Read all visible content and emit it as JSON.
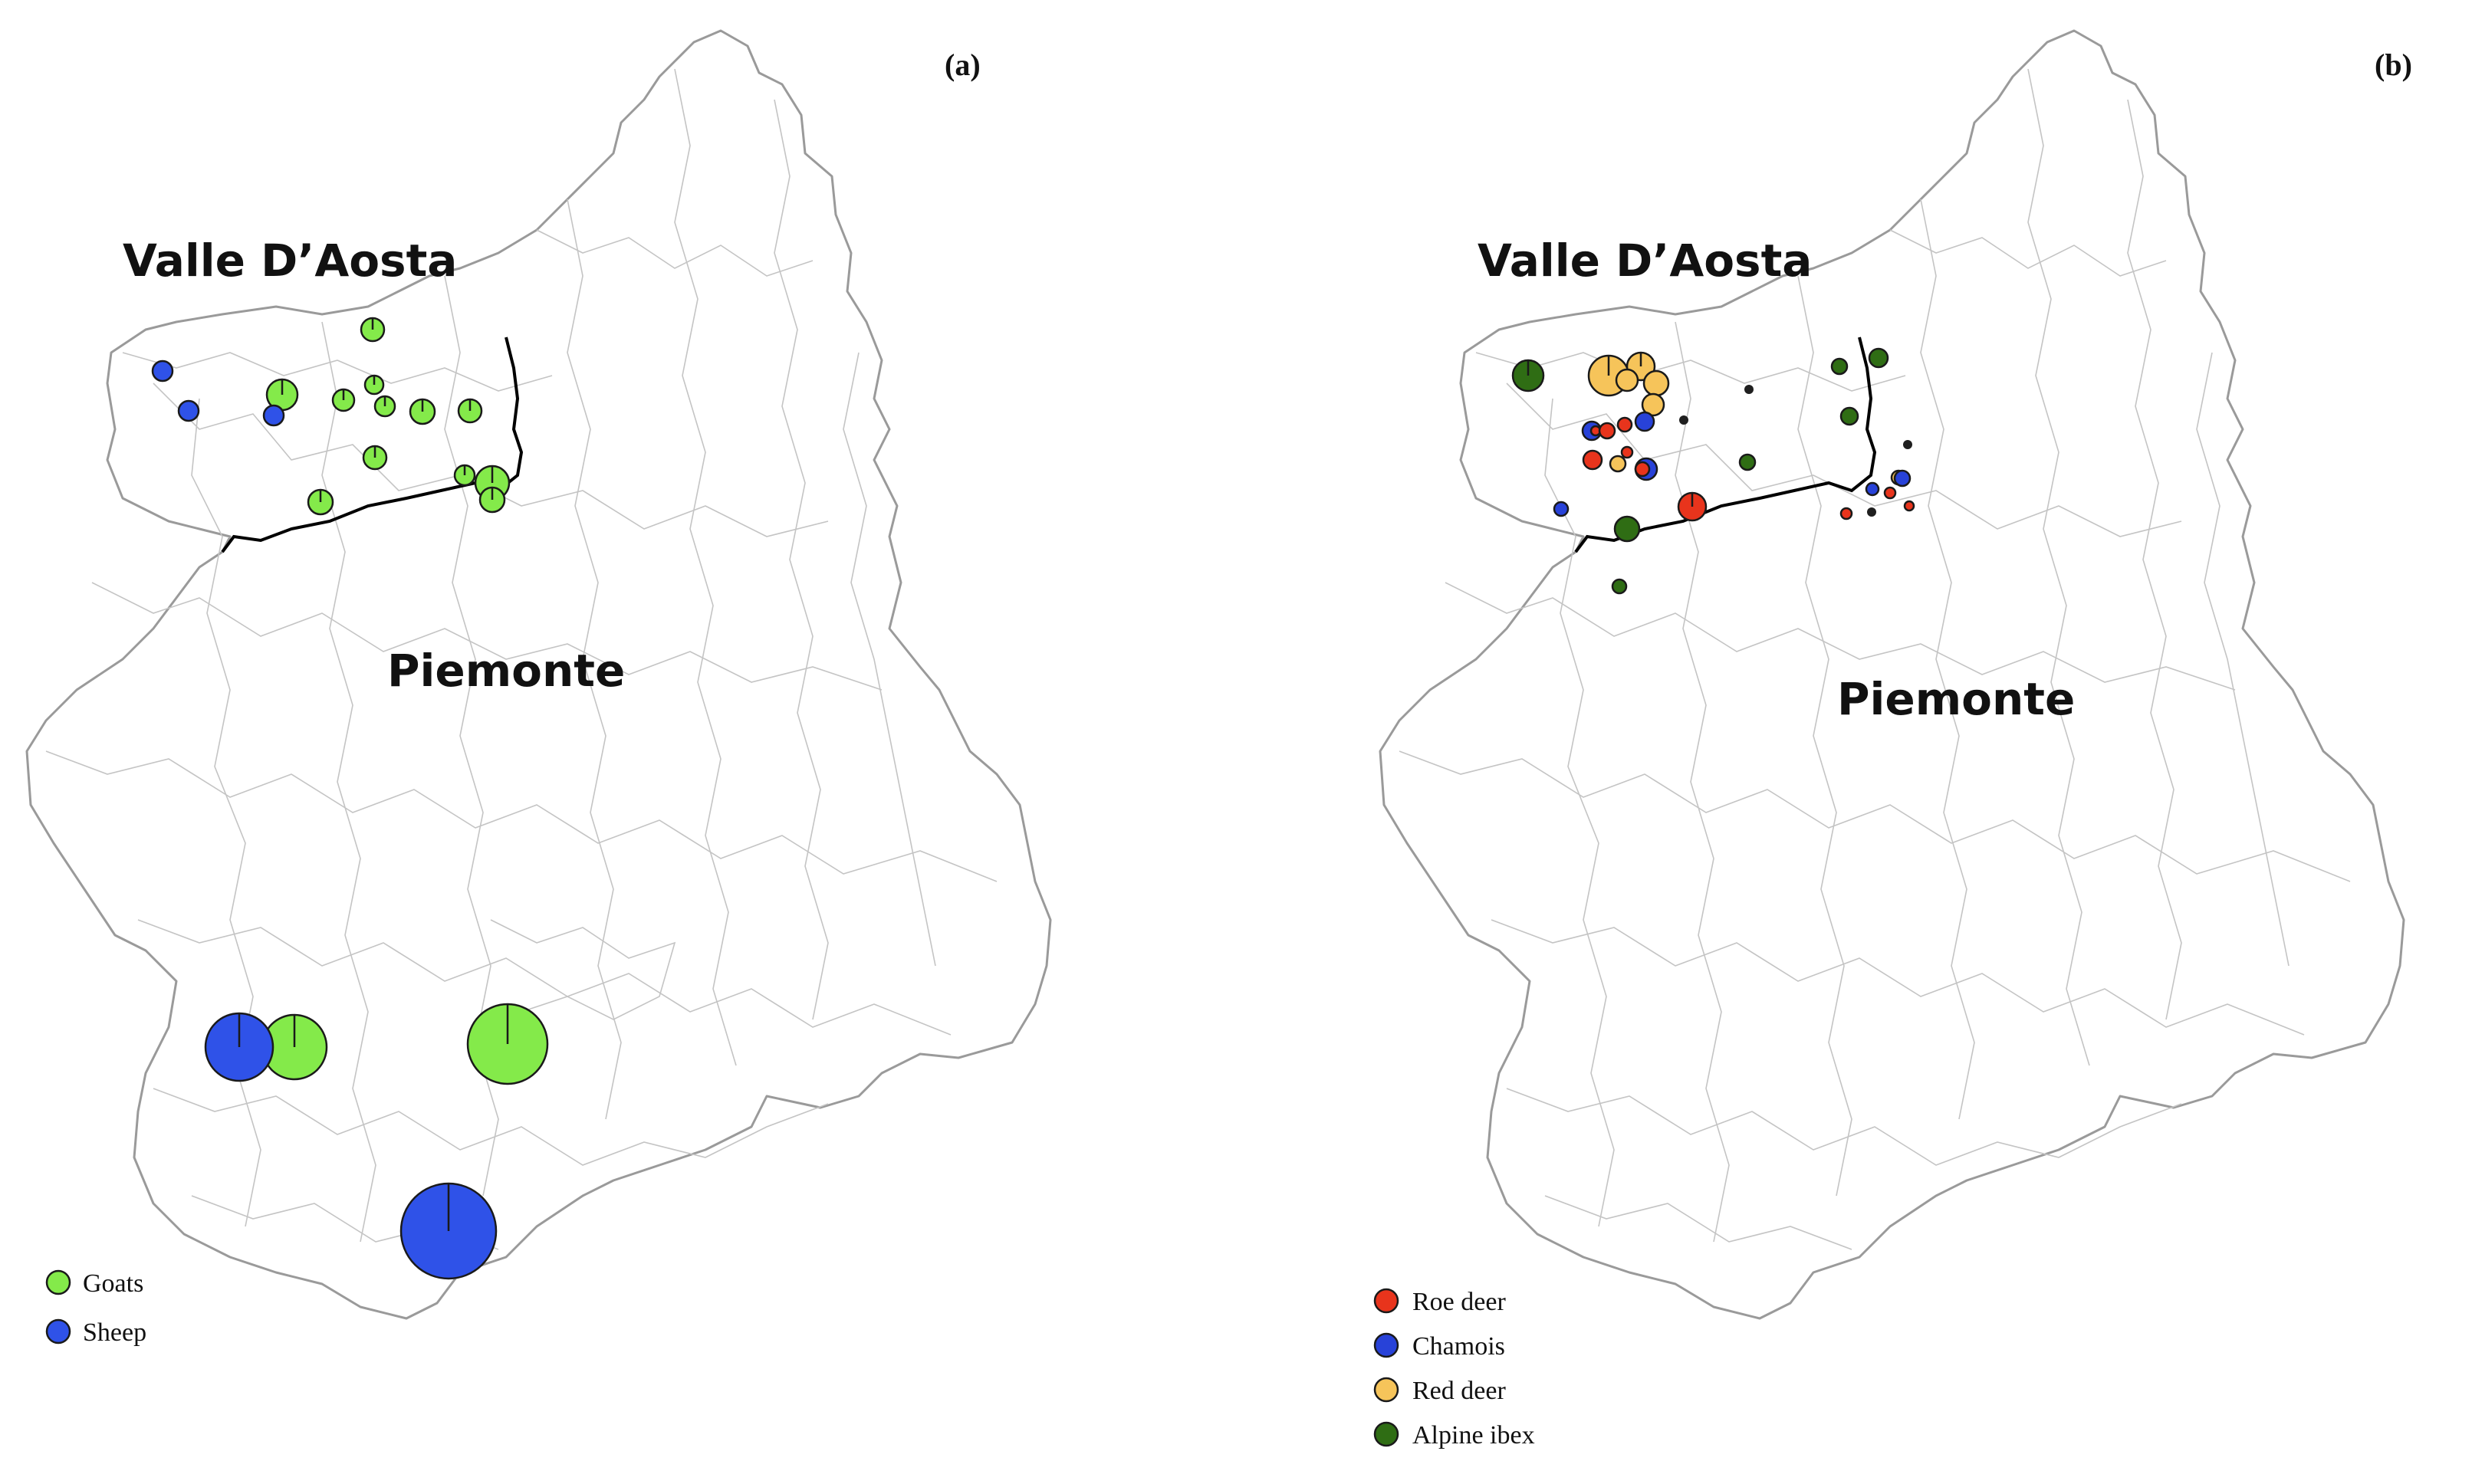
{
  "panels": [
    {
      "label": "(a)",
      "regions": [
        "Valle D’Aosta",
        "Piemonte"
      ],
      "legend": [
        {
          "name": "Goats",
          "color": "#84ea4a"
        },
        {
          "name": "Sheep",
          "color": "#2f52e8"
        }
      ]
    },
    {
      "label": "(b)",
      "regions": [
        "Valle D’Aosta",
        "Piemonte"
      ],
      "legend": [
        {
          "name": "Roe deer",
          "color": "#e8341c"
        },
        {
          "name": "Chamois",
          "color": "#2842d8"
        },
        {
          "name": "Red deer",
          "color": "#f6c45a"
        },
        {
          "name": "Alpine ibex",
          "color": "#2f6d14"
        }
      ]
    }
  ]
}
